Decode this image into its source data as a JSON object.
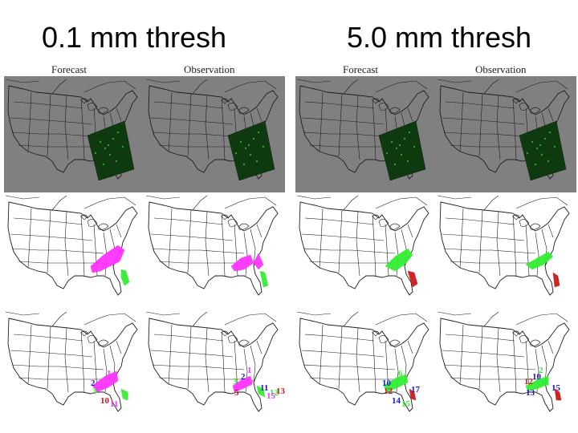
{
  "titles": {
    "left": "0.1 mm thresh",
    "right": "5.0 mm thresh"
  },
  "column_labels": {
    "forecast": "Forecast",
    "observation": "Observation"
  },
  "colors": {
    "map_background_gray": "#808080",
    "map_lines": "#1e1e1e",
    "precip_green_dark": "#0f3a0f",
    "object_magenta": "#ff33ff",
    "object_green": "#33ee33",
    "object_blue": "#1a1acc",
    "object_red": "#cc1a1a"
  },
  "object_ids": {
    "thresh_0_1": {
      "forecast": [
        "1",
        "2",
        "3",
        "4",
        "5",
        "6",
        "7",
        "8",
        "9",
        "10",
        "11"
      ],
      "observation": [
        "1",
        "2",
        "3",
        "4",
        "5",
        "6",
        "7",
        "8",
        "9",
        "10",
        "11",
        "12",
        "13",
        "14",
        "15"
      ]
    },
    "thresh_5_0": {
      "forecast": [
        "1",
        "2",
        "3",
        "4",
        "5",
        "6",
        "7",
        "8",
        "9",
        "10",
        "11",
        "12",
        "13",
        "14",
        "15",
        "16",
        "17"
      ],
      "observation": [
        "1",
        "2",
        "3",
        "4",
        "5",
        "6",
        "7",
        "8",
        "9",
        "10",
        "11",
        "12",
        "13",
        "14",
        "15"
      ]
    }
  },
  "visible_labels": {
    "thresh_0_1_forecast": [
      "1",
      "2",
      "3",
      "10",
      "11"
    ],
    "thresh_0_1_observation": [
      "1",
      "2",
      "3",
      "5",
      "7",
      "11",
      "12",
      "13",
      "15"
    ],
    "thresh_5_0_forecast": [
      "6",
      "10",
      "12",
      "14",
      "15",
      "17"
    ],
    "thresh_5_0_observation": [
      "2",
      "10",
      "12",
      "13",
      "14",
      "15"
    ]
  }
}
